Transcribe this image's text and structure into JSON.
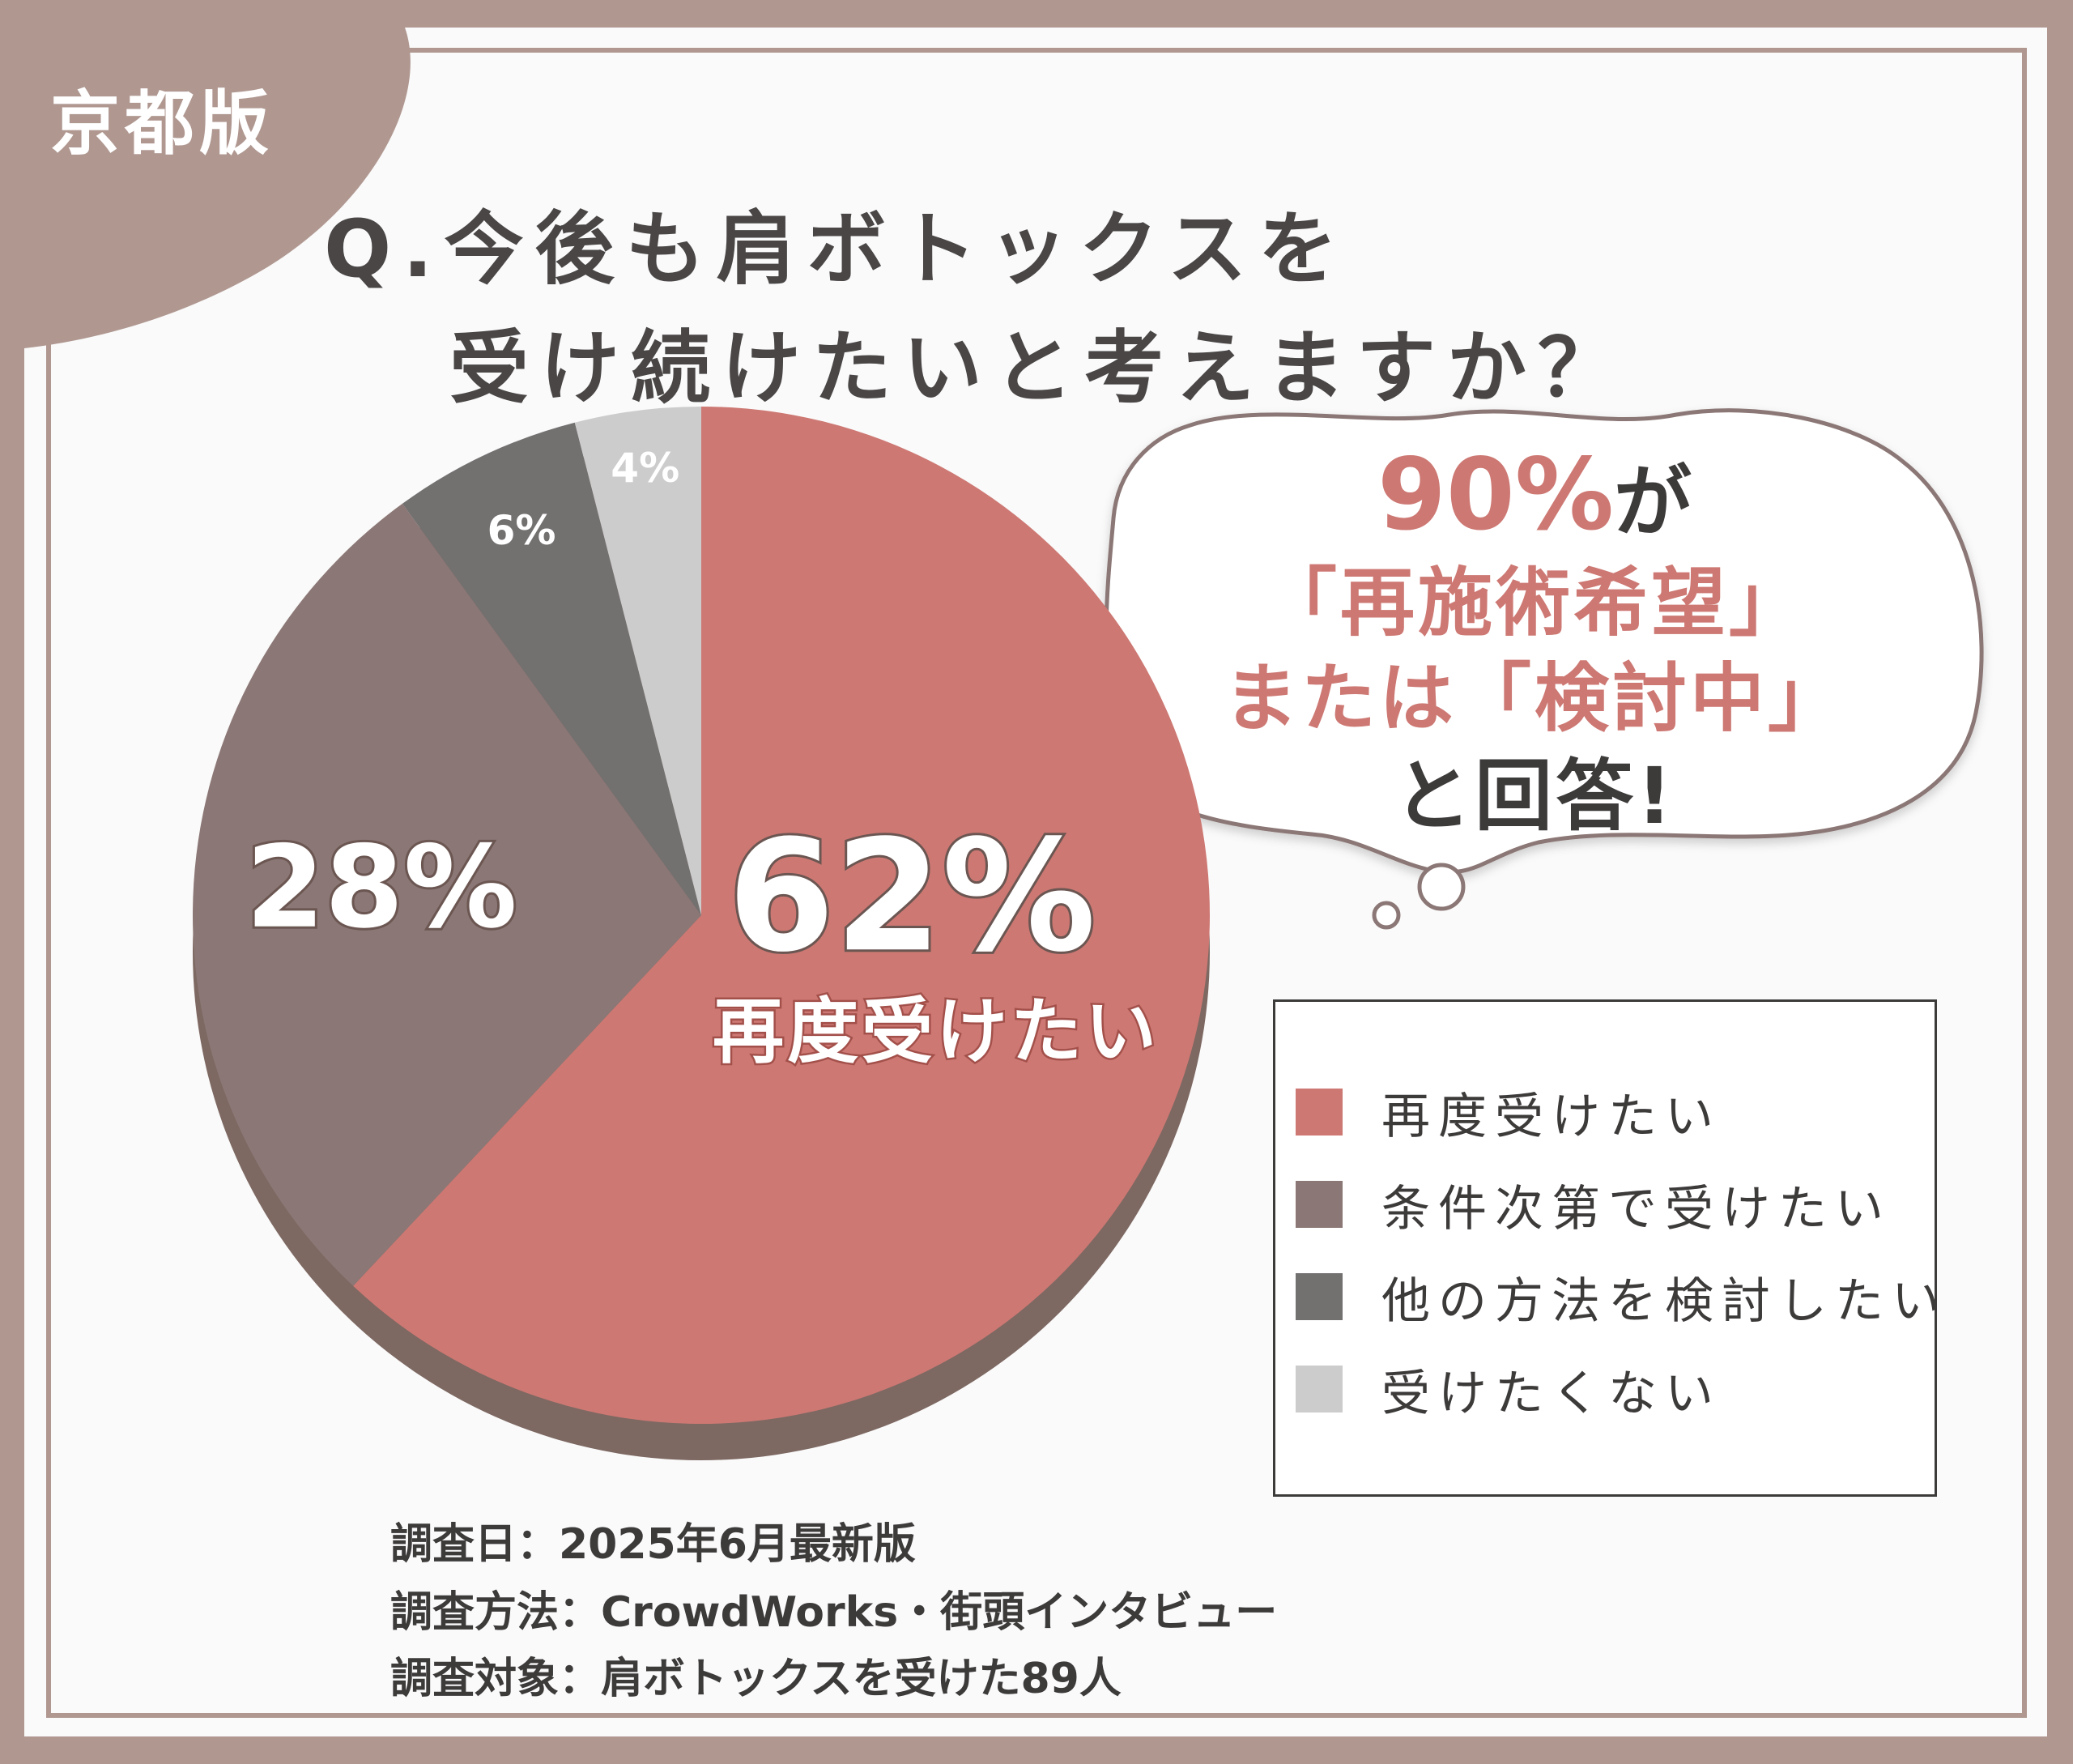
{
  "badge": "京都版",
  "title": {
    "line1": "Q.今後も肩ボトックスを",
    "line2": "受け続けたいと考えますか？"
  },
  "callout": {
    "highlight": "90%",
    "line1_suffix": "が",
    "line2": "「再施術希望」",
    "line3": "または「検討中」",
    "line4": "と回答!"
  },
  "chart_data": {
    "type": "pie",
    "title": "Q.今後も肩ボトックスを受け続けたいと考えますか？",
    "slices": [
      {
        "label": "再度受けたい",
        "value": 62,
        "display": "62%",
        "color": "#cd7873"
      },
      {
        "label": "条件次第で受けたい",
        "value": 28,
        "display": "28%",
        "color": "#8b7775"
      },
      {
        "label": "他の方法を検討したい",
        "value": 6,
        "display": "6%",
        "color": "#737070"
      },
      {
        "label": "受けたくない",
        "value": 4,
        "display": "4%",
        "color": "#cdcccc"
      }
    ],
    "main_slice_caption": "再度受けたい",
    "legend_position": "right"
  },
  "notes": {
    "date": "調査日：2025年6月最新版",
    "method": "調査方法：CrowdWorks・街頭インタビュー",
    "target": "調査対象：肩ボトックスを受けた89人"
  },
  "colors": {
    "frame": "#b09891",
    "background": "#fafafa",
    "accent": "#cd7873",
    "text": "#3d3a3a"
  }
}
